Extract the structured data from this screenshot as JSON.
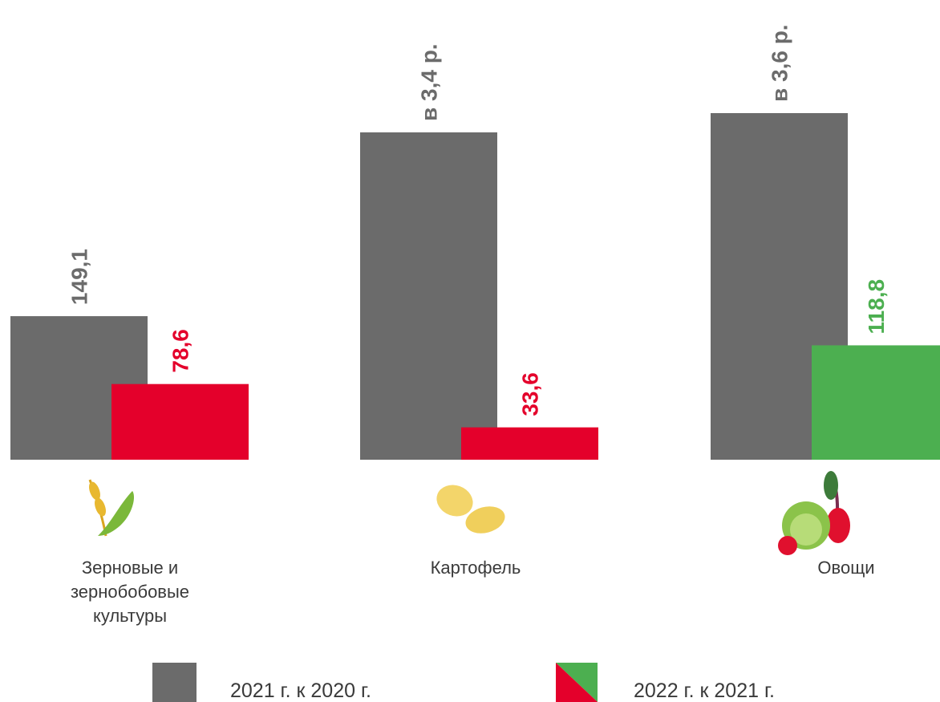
{
  "chart_data": {
    "type": "bar",
    "categories": [
      "Зерновые и\nзернобобовые\nкультуры",
      "Картофель",
      "Овощи"
    ],
    "series": [
      {
        "name": "2021 г. к 2020 г.",
        "color": "#6b6b6b",
        "values": [
          149.1,
          340,
          360
        ],
        "value_labels": [
          "149,1",
          "в 3,4 р.",
          "в 3,6 р."
        ]
      },
      {
        "name": "2022 г. к 2021 г.",
        "colors": [
          "#e4002b",
          "#e4002b",
          "#4caf50"
        ],
        "values": [
          78.6,
          33.6,
          118.8
        ],
        "value_labels": [
          "78,6",
          "33,6",
          "118,8"
        ]
      }
    ],
    "ylim": [
      0,
      400
    ]
  }
}
